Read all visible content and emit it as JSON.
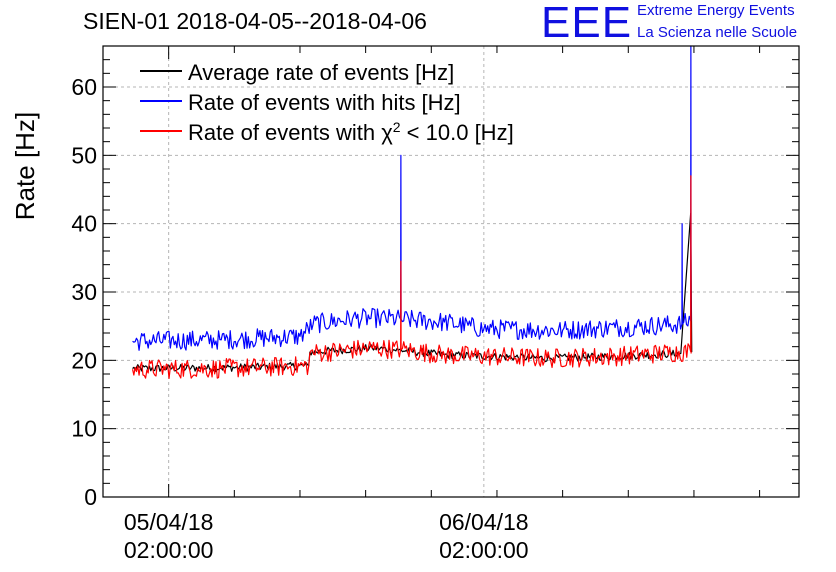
{
  "header": {
    "title": "SIEN-01 2018-04-05--2018-04-06",
    "brand_logo": "EEE",
    "brand_line1": "Extreme Energy Events",
    "brand_line2": "La Scienza nelle Scuole",
    "brand_color": "#1010e0"
  },
  "chart_data": {
    "type": "line",
    "title": "SIEN-01 2018-04-05--2018-04-06",
    "xlabel": "",
    "ylabel": "Rate [Hz]",
    "ylim": [
      0,
      66
    ],
    "yticks": [
      0,
      10,
      20,
      30,
      40,
      50,
      60
    ],
    "xlim": [
      "2018-04-04 21:00",
      "2018-04-07 02:00"
    ],
    "xticks": [
      {
        "x": "2018-04-05 02:00",
        "label_line1": "05/04/18",
        "label_line2": "02:00:00"
      },
      {
        "x": "2018-04-06 02:00",
        "label_line1": "06/04/18",
        "label_line2": "02:00:00"
      }
    ],
    "grid": true,
    "legend_position": "top-left",
    "series": [
      {
        "name": "Average rate of events [Hz]",
        "color": "#000000",
        "points": [
          [
            "2018-04-04 23:15",
            18.8
          ],
          [
            "2018-04-05 06:00",
            18.9
          ],
          [
            "2018-04-05 12:40",
            19.2
          ],
          [
            "2018-04-05 12:45",
            21.2
          ],
          [
            "2018-04-05 17:30",
            21.8
          ],
          [
            "2018-04-05 19:30",
            21.5
          ],
          [
            "2018-04-05 23:00",
            20.8
          ],
          [
            "2018-04-06 07:00",
            20.3
          ],
          [
            "2018-04-06 12:00",
            20.6
          ],
          [
            "2018-04-06 17:00",
            21.0
          ],
          [
            "2018-04-06 17:45",
            41.5
          ],
          [
            "2018-04-06 17:50",
            21.2
          ]
        ]
      },
      {
        "name": "Rate of events with hits [Hz]",
        "color": "#0000ff",
        "points": [
          [
            "2018-04-04 23:15",
            22.8
          ],
          [
            "2018-04-05 06:00",
            23.0
          ],
          [
            "2018-04-05 12:00",
            23.5
          ],
          [
            "2018-04-05 13:00",
            25.3
          ],
          [
            "2018-04-05 16:00",
            26.1
          ],
          [
            "2018-04-05 18:00",
            26.2
          ],
          [
            "2018-04-05 19:40",
            26.0
          ],
          [
            "2018-04-05 19:41",
            50.0
          ],
          [
            "2018-04-05 19:42",
            26.0
          ],
          [
            "2018-04-05 23:00",
            25.6
          ],
          [
            "2018-04-06 02:00",
            24.6
          ],
          [
            "2018-04-06 08:00",
            24.4
          ],
          [
            "2018-04-06 12:00",
            24.8
          ],
          [
            "2018-04-06 17:05",
            25.3
          ],
          [
            "2018-04-06 17:06",
            40.0
          ],
          [
            "2018-04-06 17:07",
            25.3
          ],
          [
            "2018-04-06 17:45",
            25.8
          ],
          [
            "2018-04-06 17:46",
            66.0
          ],
          [
            "2018-04-06 17:47",
            25.8
          ]
        ]
      },
      {
        "name": "Rate of events with χ² < 10.0 [Hz]",
        "color": "#ff0000",
        "points": [
          [
            "2018-04-04 23:15",
            18.7
          ],
          [
            "2018-04-05 06:00",
            18.8
          ],
          [
            "2018-04-05 12:40",
            19.2
          ],
          [
            "2018-04-05 12:45",
            21.0
          ],
          [
            "2018-04-05 17:30",
            21.8
          ],
          [
            "2018-04-05 19:40",
            21.6
          ],
          [
            "2018-04-05 19:41",
            34.5
          ],
          [
            "2018-04-05 19:42",
            21.6
          ],
          [
            "2018-04-05 23:00",
            20.8
          ],
          [
            "2018-04-06 07:00",
            20.3
          ],
          [
            "2018-04-06 12:00",
            20.6
          ],
          [
            "2018-04-06 17:45",
            21.3
          ],
          [
            "2018-04-06 17:46",
            47.0
          ],
          [
            "2018-04-06 17:47",
            21.0
          ]
        ]
      }
    ],
    "legend": [
      {
        "text": "Average rate of events [Hz]",
        "color": "#000000"
      },
      {
        "text": "Rate of events with hits [Hz]",
        "color": "#0000ff"
      },
      {
        "text_before": "Rate of events with χ",
        "superscript": "2",
        "text_after": " < 10.0 [Hz]",
        "color": "#ff0000"
      }
    ]
  }
}
